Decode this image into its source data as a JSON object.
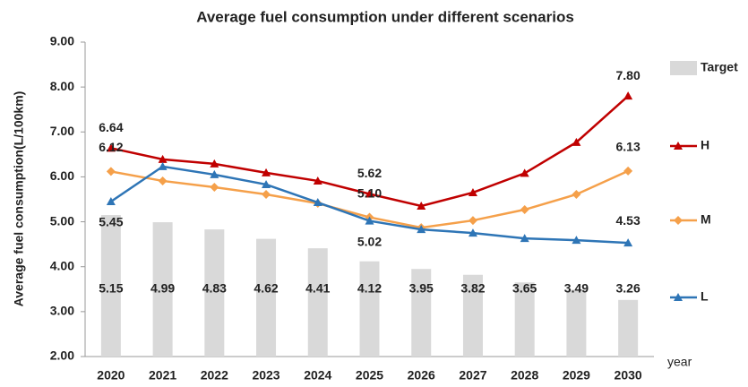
{
  "chart_data": {
    "type": "bar-line",
    "title": "Average fuel consumption under different scenarios",
    "y_label": "Average fuel consumption(L/100km)",
    "x_label": "year",
    "categories": [
      "2020",
      "2021",
      "2022",
      "2023",
      "2024",
      "2025",
      "2026",
      "2027",
      "2028",
      "2029",
      "2030"
    ],
    "ylim": [
      2,
      9
    ],
    "yticks": [
      {
        "value": 2,
        "label": "2.00"
      },
      {
        "value": 3,
        "label": "3.00"
      },
      {
        "value": 4,
        "label": "4.00"
      },
      {
        "value": 5,
        "label": "5.00"
      },
      {
        "value": 6,
        "label": "6.00"
      },
      {
        "value": 7,
        "label": "7.00"
      },
      {
        "value": 8,
        "label": "8.00"
      },
      {
        "value": 9,
        "label": "9.00"
      }
    ],
    "grid": false,
    "legend": "right",
    "series": [
      {
        "name": "Target",
        "kind": "bar",
        "color": "#d9d9d9",
        "values": [
          5.15,
          4.99,
          4.83,
          4.62,
          4.41,
          4.12,
          3.95,
          3.82,
          3.65,
          3.49,
          3.26
        ]
      },
      {
        "name": "H",
        "kind": "line",
        "marker": "triangle",
        "color": "#c00000",
        "values": [
          6.64,
          6.39,
          6.29,
          6.09,
          5.91,
          5.62,
          5.35,
          5.65,
          6.08,
          6.77,
          7.8
        ],
        "value_labels": [
          "6.64",
          null,
          null,
          null,
          null,
          "5.62",
          null,
          null,
          null,
          null,
          "7.80"
        ]
      },
      {
        "name": "M",
        "kind": "line",
        "marker": "diamond",
        "color": "#f5a04a",
        "values": [
          6.12,
          5.91,
          5.77,
          5.61,
          5.41,
          5.1,
          4.87,
          5.03,
          5.27,
          5.61,
          6.13
        ],
        "value_labels": [
          "6.12",
          null,
          null,
          null,
          null,
          "5.10",
          null,
          null,
          null,
          null,
          "6.13"
        ]
      },
      {
        "name": "L",
        "kind": "line",
        "marker": "triangle",
        "color": "#2e75b6",
        "values": [
          5.45,
          6.23,
          6.05,
          5.83,
          5.43,
          5.02,
          4.83,
          4.75,
          4.63,
          4.59,
          4.53
        ],
        "value_labels": [
          "5.45",
          null,
          null,
          null,
          null,
          "5.02",
          null,
          null,
          null,
          null,
          "4.53"
        ]
      }
    ]
  }
}
